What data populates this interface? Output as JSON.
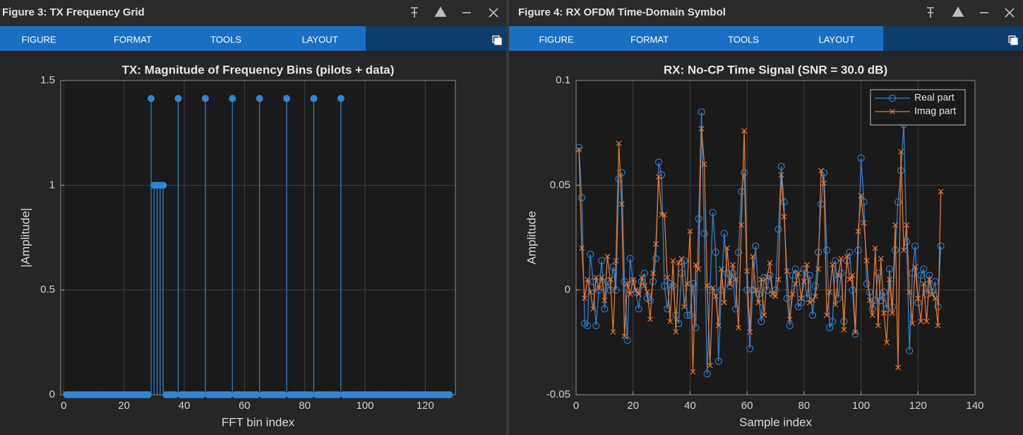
{
  "windows": [
    {
      "title": "Figure 3: TX Frequency Grid",
      "tabs": [
        "FIGURE",
        "FORMAT",
        "TOOLS",
        "LAYOUT"
      ]
    },
    {
      "title": "Figure 4: RX OFDM Time-Domain Symbol",
      "tabs": [
        "FIGURE",
        "FORMAT",
        "TOOLS",
        "LAYOUT"
      ]
    }
  ],
  "chart_data": [
    {
      "type": "stem",
      "title": "TX: Magnitude of Frequency Bins (pilots + data)",
      "x_label": "FFT bin index",
      "y_label": "|Amplitude|",
      "x": [
        1,
        2,
        3,
        4,
        5,
        6,
        7,
        8,
        9,
        10,
        11,
        12,
        13,
        14,
        15,
        16,
        17,
        18,
        19,
        20,
        21,
        22,
        23,
        24,
        25,
        26,
        27,
        28,
        29,
        30,
        31,
        32,
        33,
        34,
        35,
        36,
        37,
        38,
        39,
        40,
        41,
        42,
        43,
        44,
        45,
        46,
        47,
        48,
        49,
        50,
        51,
        52,
        53,
        54,
        55,
        56,
        57,
        58,
        59,
        60,
        61,
        62,
        63,
        64,
        65,
        66,
        67,
        68,
        69,
        70,
        71,
        72,
        73,
        74,
        75,
        76,
        77,
        78,
        79,
        80,
        81,
        82,
        83,
        84,
        85,
        86,
        87,
        88,
        89,
        90,
        91,
        92,
        93,
        94,
        95,
        96,
        97,
        98,
        99,
        100,
        101,
        102,
        103,
        104,
        105,
        106,
        107,
        108,
        109,
        110,
        111,
        112,
        113,
        114,
        115,
        116,
        117,
        118,
        119,
        120,
        121,
        122,
        123,
        124,
        125,
        126,
        127,
        128
      ],
      "values": [
        0,
        0,
        0,
        0,
        0,
        0,
        0,
        0,
        0,
        0,
        0,
        0,
        0,
        0,
        0,
        0,
        0,
        0,
        0,
        0,
        0,
        0,
        0,
        0,
        0,
        0,
        0,
        0,
        1.414,
        1,
        1,
        1,
        1,
        0,
        0,
        0,
        0,
        1.414,
        0,
        0,
        0,
        0,
        0,
        0,
        0,
        0,
        1.414,
        0,
        0,
        0,
        0,
        0,
        0,
        0,
        0,
        1.414,
        0,
        0,
        0,
        0,
        0,
        0,
        0,
        0,
        1.414,
        0,
        0,
        0,
        0,
        0,
        0,
        0,
        0,
        1.414,
        0,
        0,
        0,
        0,
        0,
        0,
        0,
        0,
        1.414,
        0,
        0,
        0,
        0,
        0,
        0,
        0,
        0,
        1.414,
        0,
        0,
        0,
        0,
        0,
        0,
        0,
        0,
        0,
        0,
        0,
        0,
        0,
        0,
        0,
        0,
        0,
        0,
        0,
        0,
        0,
        0,
        0,
        0,
        0,
        0,
        0,
        0,
        0,
        0,
        0,
        0,
        0,
        0,
        0,
        0
      ],
      "color": "#2f86d6",
      "xlim": [
        -1,
        130
      ],
      "ylim": [
        0,
        1.5
      ],
      "xticks": [
        0,
        20,
        40,
        60,
        80,
        100,
        120
      ],
      "yticks": [
        0,
        0.5,
        1,
        1.5
      ],
      "grid": true
    },
    {
      "type": "line",
      "title": "RX: No-CP Time Signal (SNR = 30.0 dB)",
      "x_label": "Sample index",
      "y_label": "Amplitude",
      "x": [
        1,
        2,
        3,
        4,
        5,
        6,
        7,
        8,
        9,
        10,
        11,
        12,
        13,
        14,
        15,
        16,
        17,
        18,
        19,
        20,
        21,
        22,
        23,
        24,
        25,
        26,
        27,
        28,
        29,
        30,
        31,
        32,
        33,
        34,
        35,
        36,
        37,
        38,
        39,
        40,
        41,
        42,
        43,
        44,
        45,
        46,
        47,
        48,
        49,
        50,
        51,
        52,
        53,
        54,
        55,
        56,
        57,
        58,
        59,
        60,
        61,
        62,
        63,
        64,
        65,
        66,
        67,
        68,
        69,
        70,
        71,
        72,
        73,
        74,
        75,
        76,
        77,
        78,
        79,
        80,
        81,
        82,
        83,
        84,
        85,
        86,
        87,
        88,
        89,
        90,
        91,
        92,
        93,
        94,
        95,
        96,
        97,
        98,
        99,
        100,
        101,
        102,
        103,
        104,
        105,
        106,
        107,
        108,
        109,
        110,
        111,
        112,
        113,
        114,
        115,
        116,
        117,
        118,
        119,
        120,
        121,
        122,
        123,
        124,
        125,
        126,
        127,
        128
      ],
      "series": [
        {
          "name": "Real part",
          "color": "#2f80d0",
          "marker": "circle",
          "values": [
            0.068,
            0.044,
            -0.016,
            -0.017,
            0.017,
            0.004,
            -0.017,
            0,
            0.014,
            -0.009,
            0.004,
            0,
            0.011,
            0,
            0.053,
            0.056,
            0.004,
            -0.024,
            0.015,
            0.004,
            -0.001,
            -0.009,
            0.004,
            0.008,
            -0.004,
            -0.005,
            0.004,
            0.015,
            0.061,
            0.055,
            0.002,
            -0.009,
            0.003,
            0.002,
            -0.012,
            -0.016,
            0.008,
            0.014,
            -0.012,
            -0.012,
            0.003,
            -0.018,
            0.034,
            0.085,
            0.027,
            -0.04,
            0,
            0.037,
            0.018,
            -0.034,
            0,
            0.027,
            0.008,
            0.002,
            0.008,
            -0.009,
            0.018,
            0.047,
            0.056,
            0,
            -0.028,
            0,
            0.021,
            -0.002,
            -0.015,
            0.006,
            0,
            0.007,
            -0.002,
            0,
            0.029,
            0.059,
            0.042,
            -0.004,
            -0.017,
            0.007,
            0.01,
            -0.008,
            -0.006,
            0.01,
            -0.004,
            0.007,
            -0.012,
            0.002,
            0.018,
            0.041,
            0.056,
            0.019,
            -0.018,
            -0.015,
            0.014,
            -0.004,
            0.008,
            -0.015,
            0.014,
            0.018,
            0,
            -0.021,
            0.019,
            0.063,
            0.042,
            0.003,
            -0.001,
            -0.009,
            -0.005,
            0.008,
            -0.005,
            -0.001,
            -0.009,
            0.01,
            -0.008,
            0.019,
            0.042,
            0.057,
            0.079,
            0.023,
            -0.029,
            0.008,
            0.021,
            -0.006,
            0.007,
            0.01,
            -0.002,
            0.007,
            -0.001,
            0.004,
            -0.008,
            0.021
          ]
        },
        {
          "name": "Imag part",
          "color": "#e8762b",
          "marker": "x",
          "values": [
            0.067,
            0.02,
            -0.004,
            0.005,
            -0.001,
            -0.009,
            0.006,
            0.001,
            0.006,
            -0.005,
            0.016,
            0.005,
            -0.02,
            0.014,
            0.07,
            0.041,
            -0.022,
            0.003,
            -0.002,
            0.005,
            0,
            -0.002,
            0.006,
            0.002,
            -0.001,
            -0.014,
            0.008,
            0.022,
            0.054,
            0.036,
            0.036,
            0.006,
            -0.015,
            0.014,
            -0.02,
            0.013,
            0.015,
            -0.008,
            0.003,
            0.028,
            -0.039,
            0.012,
            0.01,
            0.077,
            0.06,
            0.002,
            -0.036,
            0.001,
            -0.003,
            -0.017,
            0.01,
            -0.006,
            0.02,
            0.003,
            0.012,
            0.005,
            -0.018,
            0.031,
            0.076,
            0.009,
            -0.02,
            0.016,
            0,
            -0.006,
            0.005,
            -0.012,
            0.006,
            0.013,
            -0.002,
            -0.003,
            0.005,
            0.055,
            0.035,
            0.009,
            -0.014,
            -0.002,
            0.003,
            0.008,
            -0.004,
            0.004,
            0.012,
            -0.006,
            -0.005,
            -0.003,
            0.01,
            0.057,
            0.051,
            -0.012,
            -0.001,
            0.012,
            -0.007,
            0.007,
            0.015,
            -0.019,
            0.016,
            0.005,
            0.007,
            -0.02,
            0.028,
            0.045,
            0.032,
            0.014,
            -0.005,
            -0.012,
            0.02,
            -0.017,
            0.015,
            -0.011,
            -0.025,
            0.005,
            -0.011,
            0.031,
            -0.037,
            0.066,
            0.019,
            0.031,
            -0.001,
            -0.016,
            0.011,
            -0.004,
            -0.015,
            0.003,
            -0.015,
            0.005,
            -0.002,
            -0.004,
            -0.017,
            0.047
          ]
        }
      ],
      "xlim": [
        0,
        140
      ],
      "ylim": [
        -0.05,
        0.1
      ],
      "xticks": [
        0,
        20,
        40,
        60,
        80,
        100,
        120,
        140
      ],
      "yticks": [
        -0.05,
        0,
        0.05,
        0.1
      ],
      "grid": true,
      "legend": "northeast"
    }
  ]
}
